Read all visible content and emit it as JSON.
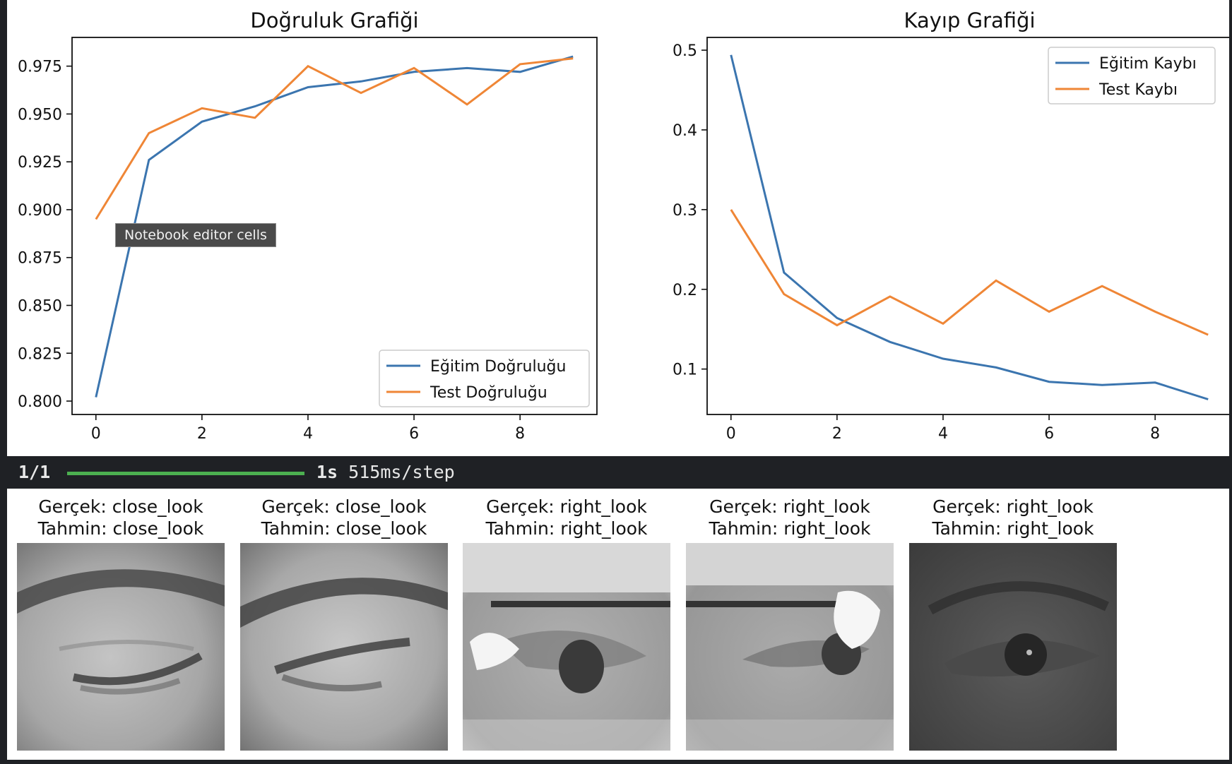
{
  "charts": [
    {
      "type": "line",
      "title": "Doğruluk Grafiği",
      "x": [
        0,
        1,
        2,
        3,
        4,
        5,
        6,
        7,
        8,
        9
      ],
      "series": [
        {
          "name": "Eğitim Doğruluğu",
          "color": "#3b75af",
          "values": [
            0.802,
            0.926,
            0.946,
            0.954,
            0.964,
            0.967,
            0.972,
            0.974,
            0.972,
            0.98
          ]
        },
        {
          "name": "Test Doğruluğu",
          "color": "#ef8636",
          "values": [
            0.895,
            0.94,
            0.953,
            0.948,
            0.975,
            0.961,
            0.974,
            0.955,
            0.976,
            0.979
          ]
        }
      ],
      "xlim": [
        -0.45,
        9.45
      ],
      "ylim": [
        0.793,
        0.99
      ],
      "xticks": [
        0,
        2,
        4,
        6,
        8
      ],
      "yticks": [
        0.8,
        0.825,
        0.85,
        0.875,
        0.9,
        0.925,
        0.95,
        0.975
      ],
      "ytick_labels": [
        "0.800",
        "0.825",
        "0.850",
        "0.875",
        "0.900",
        "0.925",
        "0.950",
        "0.975"
      ],
      "legend_position": "lower right",
      "grid": false
    },
    {
      "type": "line",
      "title": "Kayıp Grafiği",
      "x": [
        0,
        1,
        2,
        3,
        4,
        5,
        6,
        7,
        8,
        9
      ],
      "series": [
        {
          "name": "Eğitim Kaybı",
          "color": "#3b75af",
          "values": [
            0.494,
            0.221,
            0.164,
            0.134,
            0.113,
            0.102,
            0.084,
            0.08,
            0.083,
            0.062
          ]
        },
        {
          "name": "Test Kaybı",
          "color": "#ef8636",
          "values": [
            0.3,
            0.194,
            0.155,
            0.191,
            0.157,
            0.211,
            0.172,
            0.204,
            0.172,
            0.143
          ]
        }
      ],
      "xlim": [
        -0.45,
        9.45
      ],
      "ylim": [
        0.043,
        0.516
      ],
      "xticks": [
        0,
        2,
        4,
        6,
        8
      ],
      "yticks": [
        0.1,
        0.2,
        0.3,
        0.4,
        0.5
      ],
      "ytick_labels": [
        "0.1",
        "0.2",
        "0.3",
        "0.4",
        "0.5"
      ],
      "legend_position": "upper right",
      "grid": false
    }
  ],
  "tooltip": {
    "text": "Notebook editor cells"
  },
  "progress": {
    "count": "1/1",
    "fraction": 1.0,
    "bar_color": "#4caf50",
    "time_bold": "1s",
    "time_rest": " 515ms/step"
  },
  "samples": [
    {
      "true_label": "Gerçek: close_look",
      "pred_label": "Tahmin: close_look",
      "eye": "closed"
    },
    {
      "true_label": "Gerçek: close_look",
      "pred_label": "Tahmin: close_look",
      "eye": "closed"
    },
    {
      "true_label": "Gerçek: right_look",
      "pred_label": "Tahmin: right_look",
      "eye": "open-glasses-left-glare"
    },
    {
      "true_label": "Gerçek: right_look",
      "pred_label": "Tahmin: right_look",
      "eye": "open-glasses-right-glare"
    },
    {
      "true_label": "Gerçek: right_look",
      "pred_label": "Tahmin: right_look",
      "eye": "open-dark"
    }
  ]
}
